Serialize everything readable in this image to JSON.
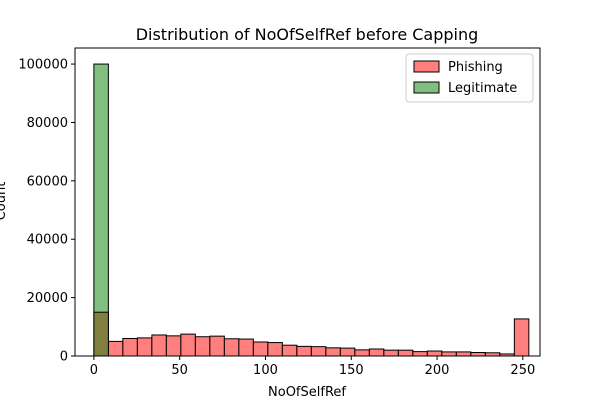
{
  "chart_data": {
    "type": "histogram",
    "title": "Distribution of NoOfSelfRef before Capping",
    "xlabel": "NoOfSelfRef",
    "ylabel": "Count",
    "xlim": [
      -11,
      260
    ],
    "ylim": [
      0,
      105500
    ],
    "xticks": [
      0,
      50,
      100,
      150,
      200,
      250
    ],
    "yticks": [
      0,
      20000,
      40000,
      60000,
      80000,
      100000
    ],
    "legend_position": "top-right",
    "bin_edges": [
      0,
      8.45,
      16.9,
      25.35,
      33.8,
      42.25,
      50.7,
      59.15,
      67.6,
      76.05,
      84.5,
      92.95,
      101.4,
      109.85,
      118.3,
      126.75,
      135.2,
      143.65,
      152.1,
      160.55,
      169,
      177.45,
      185.9,
      194.35,
      202.8,
      211.25,
      219.7,
      228.15,
      236.6,
      245.05,
      253.5
    ],
    "series": [
      {
        "name": "Phishing",
        "color": "#ff7f7f",
        "values": [
          15000,
          5000,
          6000,
          6200,
          7200,
          6900,
          7500,
          6600,
          6800,
          5900,
          5800,
          4800,
          4600,
          3700,
          3300,
          3200,
          2800,
          2700,
          2100,
          2400,
          2000,
          2000,
          1500,
          1700,
          1400,
          1400,
          1200,
          1100,
          700,
          12700
        ]
      },
      {
        "name": "Legitimate",
        "color": "#80bf80",
        "values": [
          100000,
          0,
          0,
          0,
          0,
          0,
          0,
          0,
          0,
          0,
          0,
          0,
          0,
          0,
          0,
          0,
          0,
          0,
          0,
          0,
          0,
          0,
          0,
          0,
          0,
          0,
          0,
          0,
          0,
          0
        ]
      }
    ],
    "overlap_color": "#807f3f"
  }
}
